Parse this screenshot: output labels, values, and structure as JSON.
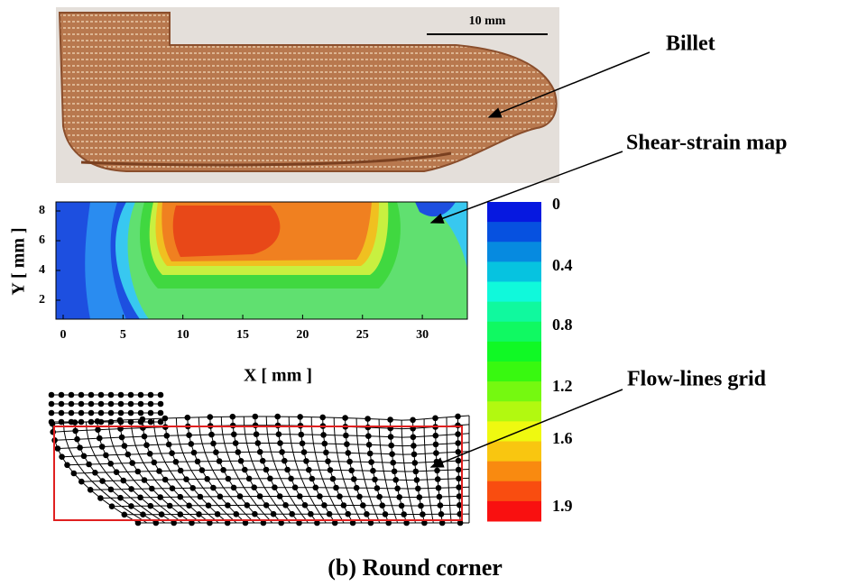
{
  "figure": {
    "scale_bar": "10 mm",
    "labels": [
      "Billet",
      "Shear-strain map",
      "Flow-lines grid"
    ],
    "plot": {
      "y_label": "Y  [ mm ]",
      "x_label": "X  [ mm ]",
      "xticks": [
        0,
        5,
        10,
        15,
        20,
        25,
        30
      ],
      "yticks": [
        2,
        4,
        6,
        8
      ]
    },
    "colorbar_ticks": [
      0,
      0.4,
      0.8,
      1.2,
      1.6,
      1.9
    ],
    "caption": "(b)  Round corner"
  }
}
